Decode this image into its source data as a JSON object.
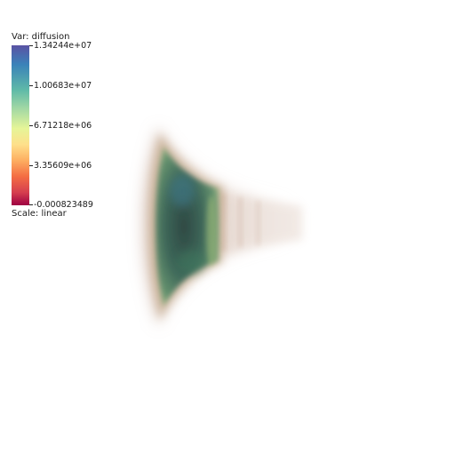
{
  "legend": {
    "var_label": "Var: diffusion",
    "scale_label": "Scale: linear",
    "ticks": [
      "1.34244e+07",
      "1.00683e+07",
      "6.71218e+06",
      "3.35609e+06",
      "-0.000823489"
    ],
    "colormap_colors": [
      "#5a52a3",
      "#3a82b9",
      "#5fbaa8",
      "#a5d9a4",
      "#e6f598",
      "#fee08b",
      "#fdae61",
      "#f46d43",
      "#d53e4f",
      "#9e0142"
    ]
  }
}
